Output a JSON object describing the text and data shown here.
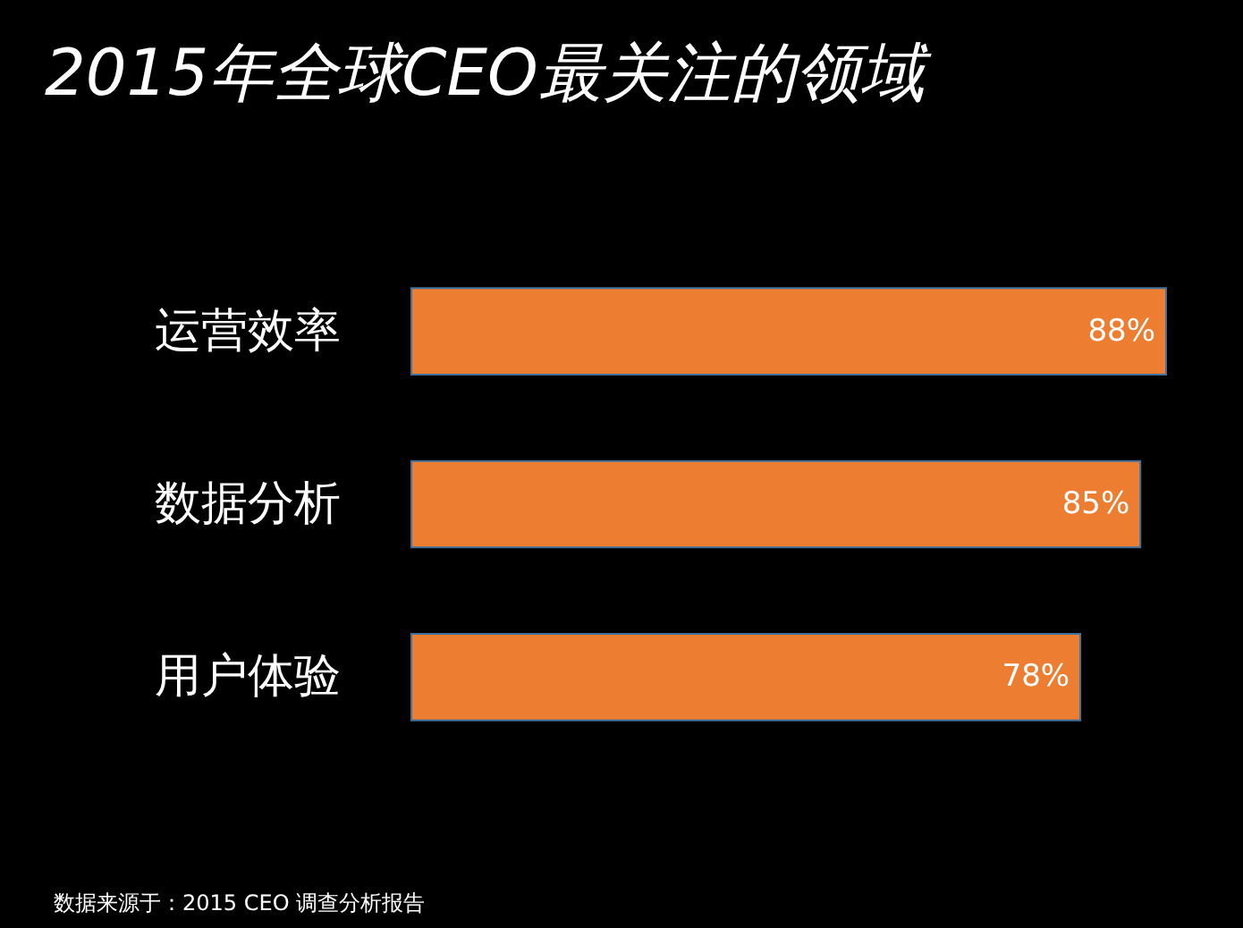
{
  "chart_data": {
    "type": "bar",
    "orientation": "horizontal",
    "title": "2015年全球CEO最关注的领域",
    "categories": [
      "运营效率",
      "数据分析",
      "用户体验"
    ],
    "values": [
      88,
      85,
      78
    ],
    "color": "#ed7d31",
    "value_labels": [
      "88%",
      "85%",
      "78%"
    ],
    "xlim": [
      0,
      88
    ],
    "tick_labels": "y",
    "annotations": [
      "数据来源于：2015 CEO 调查分析报告"
    ]
  }
}
